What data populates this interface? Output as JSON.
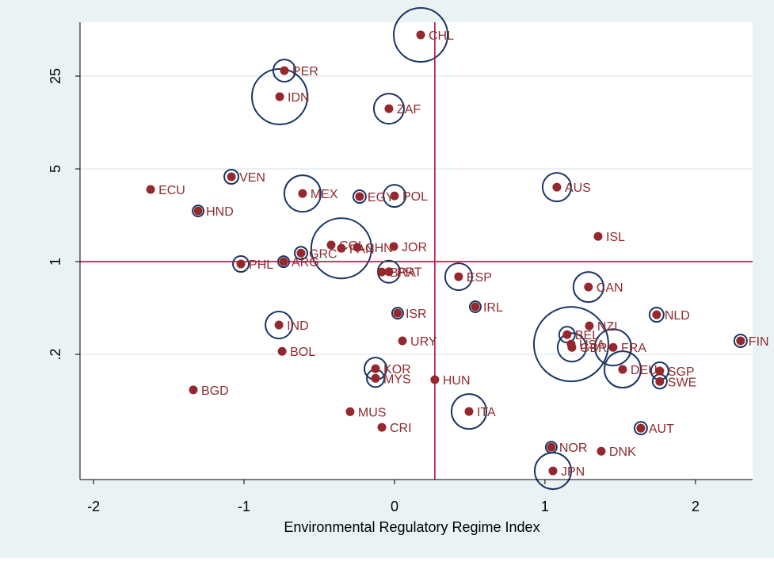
{
  "chart_data": {
    "type": "scatter",
    "x_label": "Environmental Regulatory Regime Index",
    "xlim": [
      -2.09,
      2.38
    ],
    "xticks": [
      -2,
      -1,
      0,
      1,
      2
    ],
    "ylim": [
      0.0228,
      63.7
    ],
    "yticks": [
      {
        "value": 0.2,
        "label": ".2"
      },
      1,
      5,
      25
    ],
    "log_y": true,
    "grid": true,
    "xline": 0.268,
    "yline": 1,
    "dot_color": "#95282d",
    "bubble_color": "#1a3564",
    "label_color": "#8e2b30",
    "line_color": "#b5123e",
    "labels": [
      "CHL",
      "PER",
      "IDN",
      "ZAF",
      "VEN",
      "ECU",
      "MEX",
      "EGY",
      "POL",
      "AUS",
      "HND",
      "ISL",
      "COL",
      "PAN",
      "CHN",
      "JOR",
      "GRC",
      "PHL",
      "ARG",
      "BRA",
      "PRT",
      "ESP",
      "CAN",
      "IRL",
      "ISR",
      "NLD",
      "IND",
      "NZL",
      "BEL",
      "FIN",
      "URY",
      "USA",
      "GBR",
      "FRA",
      "BOL",
      "KOR",
      "DEU",
      "SGP",
      "MYS",
      "SWE",
      "HUN",
      "BGD",
      "ITA",
      "MUS",
      "CRI",
      "AUT",
      "NOR",
      "DNK",
      "JPN"
    ],
    "x": [
      0.174,
      -0.732,
      -0.763,
      -0.037,
      -1.084,
      -1.621,
      -0.611,
      -0.232,
      0,
      1.079,
      -1.305,
      1.353,
      -0.421,
      -0.353,
      -0.247,
      -0.005,
      -0.621,
      -1.021,
      -0.737,
      -0.084,
      -0.037,
      0.426,
      1.289,
      0.537,
      0.021,
      1.742,
      -0.768,
      1.295,
      1.147,
      2.3,
      0.053,
      1.174,
      1.179,
      1.453,
      -0.747,
      -0.126,
      1.516,
      1.763,
      -0.126,
      1.763,
      0.268,
      -1.337,
      0.495,
      -0.295,
      -0.084,
      1.637,
      1.042,
      1.374,
      1.053
    ],
    "y": [
      51.1,
      27.5,
      17.5,
      14.2,
      4.36,
      3.5,
      3.26,
      3.09,
      3.13,
      3.64,
      2.41,
      1.55,
      1.335,
      1.26,
      1.28,
      1.3,
      1.16,
      0.96,
      1.0,
      0.836,
      0.84,
      0.77,
      0.644,
      0.457,
      0.409,
      0.398,
      0.333,
      0.328,
      0.282,
      0.253,
      0.253,
      0.239,
      0.226,
      0.226,
      0.211,
      0.156,
      0.154,
      0.15,
      0.132,
      0.125,
      0.129,
      0.108,
      0.0743,
      0.074,
      0.0564,
      0.0556,
      0.04,
      0.0373,
      0.0265
    ],
    "sizes": [
      34,
      14,
      35,
      19,
      9,
      0,
      23,
      8,
      14,
      18,
      7,
      0,
      0,
      38,
      0,
      0,
      8,
      10,
      7,
      0,
      14,
      17,
      19,
      7,
      7,
      9,
      17,
      0,
      10,
      8,
      0,
      47,
      18,
      23,
      0,
      14,
      23,
      11,
      11,
      9,
      0,
      0,
      22,
      0,
      0,
      8,
      7,
      0,
      23
    ]
  }
}
